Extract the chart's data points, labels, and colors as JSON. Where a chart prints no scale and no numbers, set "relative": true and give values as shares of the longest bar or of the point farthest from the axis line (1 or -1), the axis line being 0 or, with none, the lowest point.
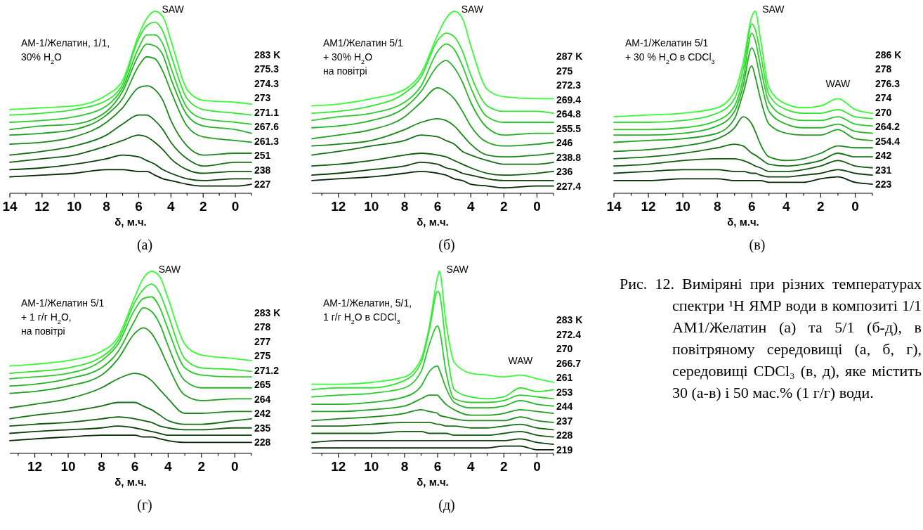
{
  "chart_data": [
    {
      "type": "line",
      "relative": true,
      "title": "(а)",
      "xlabel": "δ, м.ч.",
      "xlim": [
        14,
        -1
      ],
      "xticks": [
        14,
        {
          "value": 13,
          "label": null
        },
        12,
        {
          "value": 11,
          "label": null
        },
        10,
        {
          "value": 9,
          "label": null
        },
        8,
        {
          "value": 7,
          "label": null
        },
        6,
        {
          "value": 5,
          "label": null
        },
        4,
        {
          "value": 3,
          "label": null
        },
        2,
        {
          "value": 1,
          "label": null
        },
        0,
        {
          "value": -1,
          "label": null
        }
      ],
      "annotations": [
        "АМ-1/Желатин, 1/1,\n30% H$_{2}$O",
        "SAW"
      ],
      "x": [
        14,
        12,
        10,
        8,
        7,
        6,
        5.5,
        5,
        4.5,
        4,
        3,
        2,
        0,
        -1
      ],
      "series": [
        {
          "name": "283 K",
          "color": "#33ff33",
          "values": [
            0.46,
            0.47,
            0.48,
            0.54,
            0.62,
            0.87,
            0.96,
            1.0,
            0.97,
            0.84,
            0.57,
            0.51,
            0.5,
            0.49
          ]
        },
        {
          "name": "275.3",
          "color": "#2ee62e",
          "values": [
            0.43,
            0.44,
            0.46,
            0.51,
            0.6,
            0.85,
            0.92,
            0.94,
            0.89,
            0.76,
            0.52,
            0.46,
            0.44,
            0.43
          ]
        },
        {
          "name": "274.3",
          "color": "#29cc29",
          "values": [
            0.39,
            0.4,
            0.42,
            0.48,
            0.58,
            0.8,
            0.87,
            0.87,
            0.82,
            0.69,
            0.47,
            0.41,
            0.39,
            0.38
          ]
        },
        {
          "name": "273",
          "color": "#24b324",
          "values": [
            0.35,
            0.37,
            0.38,
            0.45,
            0.56,
            0.76,
            0.82,
            0.81,
            0.76,
            0.63,
            0.43,
            0.37,
            0.35,
            0.33
          ]
        },
        {
          "name": "271.1",
          "color": "#1f9e1f",
          "values": [
            0.32,
            0.33,
            0.35,
            0.43,
            0.52,
            0.7,
            0.75,
            0.74,
            0.67,
            0.56,
            0.37,
            0.31,
            0.29,
            0.28
          ]
        },
        {
          "name": "267.6",
          "color": "#1a871a",
          "values": [
            0.27,
            0.28,
            0.31,
            0.39,
            0.47,
            0.58,
            0.59,
            0.57,
            0.51,
            0.4,
            0.26,
            0.21,
            0.22,
            0.22
          ]
        },
        {
          "name": "261.3",
          "color": "#157015",
          "values": [
            0.21,
            0.23,
            0.26,
            0.32,
            0.38,
            0.43,
            0.43,
            0.4,
            0.35,
            0.28,
            0.19,
            0.15,
            0.17,
            0.17
          ]
        },
        {
          "name": "251",
          "color": "#105a10",
          "values": [
            0.17,
            0.19,
            0.21,
            0.26,
            0.29,
            0.32,
            0.31,
            0.28,
            0.24,
            0.19,
            0.13,
            0.11,
            0.12,
            0.12
          ]
        },
        {
          "name": "238",
          "color": "#0b420b",
          "values": [
            0.13,
            0.14,
            0.16,
            0.19,
            0.21,
            0.2,
            0.18,
            0.16,
            0.13,
            0.11,
            0.08,
            0.07,
            0.08,
            0.08
          ]
        },
        {
          "name": "227",
          "color": "#062806",
          "values": [
            0.09,
            0.1,
            0.11,
            0.13,
            0.13,
            0.12,
            0.12,
            0.1,
            0.08,
            0.07,
            0.05,
            0.04,
            0.04,
            0.05
          ]
        }
      ]
    },
    {
      "type": "line",
      "relative": true,
      "title": "(б)",
      "xlabel": "δ, м.ч.",
      "xlim": [
        13.6,
        -1
      ],
      "xticks": [
        {
          "value": 13,
          "label": null
        },
        12,
        {
          "value": 11,
          "label": null
        },
        10,
        {
          "value": 9,
          "label": null
        },
        8,
        {
          "value": 7,
          "label": null
        },
        6,
        {
          "value": 5,
          "label": null
        },
        4,
        {
          "value": 3,
          "label": null
        },
        2,
        {
          "value": 1,
          "label": null
        },
        0,
        {
          "value": -1,
          "label": null
        }
      ],
      "annotations": [
        "АМ1/Желатин 5/1\n+ 30% H$_{2}$O\nна повітрі",
        "SAW"
      ],
      "x": [
        13.6,
        12,
        10,
        8,
        7,
        6,
        5.5,
        5,
        4.5,
        4,
        3,
        2,
        0,
        -1
      ],
      "series": [
        {
          "name": "287 K",
          "color": "#33ff33",
          "values": [
            0.48,
            0.49,
            0.52,
            0.57,
            0.66,
            0.87,
            0.96,
            1.0,
            0.96,
            0.81,
            0.57,
            0.53,
            0.52,
            0.52
          ]
        },
        {
          "name": "275",
          "color": "#2ee62e",
          "values": [
            0.44,
            0.45,
            0.48,
            0.55,
            0.64,
            0.84,
            0.88,
            0.86,
            0.78,
            0.65,
            0.48,
            0.45,
            0.45,
            0.44
          ]
        },
        {
          "name": "272.3",
          "color": "#29cc29",
          "values": [
            0.4,
            0.42,
            0.44,
            0.5,
            0.59,
            0.78,
            0.82,
            0.79,
            0.7,
            0.58,
            0.42,
            0.39,
            0.39,
            0.39
          ]
        },
        {
          "name": "269.4",
          "color": "#24b324",
          "values": [
            0.36,
            0.37,
            0.4,
            0.47,
            0.56,
            0.7,
            0.73,
            0.69,
            0.61,
            0.5,
            0.36,
            0.32,
            0.33,
            0.33
          ]
        },
        {
          "name": "264.8",
          "color": "#1f9e1f",
          "values": [
            0.3,
            0.32,
            0.35,
            0.42,
            0.5,
            0.58,
            0.56,
            0.52,
            0.45,
            0.37,
            0.28,
            0.26,
            0.27,
            0.28
          ]
        },
        {
          "name": "255.5",
          "color": "#1a871a",
          "values": [
            0.26,
            0.27,
            0.29,
            0.35,
            0.39,
            0.41,
            0.4,
            0.37,
            0.32,
            0.27,
            0.21,
            0.2,
            0.21,
            0.22
          ]
        },
        {
          "name": "246",
          "color": "#157015",
          "values": [
            0.21,
            0.23,
            0.26,
            0.29,
            0.32,
            0.31,
            0.29,
            0.27,
            0.23,
            0.21,
            0.18,
            0.16,
            0.16,
            0.17
          ]
        },
        {
          "name": "238.8",
          "color": "#105a10",
          "values": [
            0.15,
            0.16,
            0.18,
            0.21,
            0.22,
            0.21,
            0.2,
            0.18,
            0.16,
            0.14,
            0.11,
            0.1,
            0.11,
            0.12
          ]
        },
        {
          "name": "236",
          "color": "#0b420b",
          "values": [
            0.1,
            0.11,
            0.13,
            0.15,
            0.17,
            0.16,
            0.14,
            0.13,
            0.11,
            0.1,
            0.08,
            0.07,
            0.07,
            0.07
          ]
        },
        {
          "name": "227.4",
          "color": "#062806",
          "values": [
            0.07,
            0.08,
            0.09,
            0.11,
            0.12,
            0.11,
            0.1,
            0.08,
            0.07,
            0.05,
            0.04,
            0.03,
            0.04,
            0.04
          ]
        }
      ]
    },
    {
      "type": "line",
      "relative": true,
      "title": "(в)",
      "xlabel": "δ, м.ч.",
      "xlim": [
        14,
        -1
      ],
      "xticks": [
        14,
        {
          "value": 13,
          "label": null
        },
        12,
        {
          "value": 11,
          "label": null
        },
        10,
        {
          "value": 9,
          "label": null
        },
        8,
        {
          "value": 7,
          "label": null
        },
        6,
        {
          "value": 5,
          "label": null
        },
        4,
        {
          "value": 3,
          "label": null
        },
        2,
        {
          "value": 1,
          "label": null
        },
        0,
        {
          "value": -1,
          "label": null
        }
      ],
      "annotations": [
        "АМ-1/Желатин 5/1\n+ 30 % H$_{2}$O в CDCl$_{3}$",
        "SAW",
        "WAW"
      ],
      "x": [
        14,
        12,
        10,
        8,
        7,
        6.5,
        6,
        5.8,
        5.5,
        5,
        4,
        3,
        2,
        1,
        0,
        -1
      ],
      "series": [
        {
          "name": "286 K",
          "color": "#33ff33",
          "values": [
            0.42,
            0.43,
            0.44,
            0.47,
            0.56,
            0.72,
            0.97,
            1.0,
            0.85,
            0.58,
            0.49,
            0.47,
            0.48,
            0.52,
            0.46,
            0.44
          ]
        },
        {
          "name": "278",
          "color": "#2ee62e",
          "values": [
            0.39,
            0.39,
            0.4,
            0.44,
            0.52,
            0.68,
            0.93,
            0.9,
            0.77,
            0.54,
            0.46,
            0.44,
            0.44,
            0.46,
            0.42,
            0.41
          ]
        },
        {
          "name": "276.3",
          "color": "#29cc29",
          "values": [
            0.35,
            0.35,
            0.36,
            0.4,
            0.48,
            0.63,
            0.88,
            0.84,
            0.7,
            0.5,
            0.42,
            0.4,
            0.4,
            0.42,
            0.38,
            0.37
          ]
        },
        {
          "name": "274",
          "color": "#24b324",
          "values": [
            0.32,
            0.32,
            0.33,
            0.37,
            0.45,
            0.59,
            0.8,
            0.76,
            0.63,
            0.45,
            0.38,
            0.36,
            0.36,
            0.38,
            0.34,
            0.33
          ]
        },
        {
          "name": "270",
          "color": "#1f9e1f",
          "values": [
            0.28,
            0.29,
            0.3,
            0.33,
            0.41,
            0.55,
            0.7,
            0.64,
            0.52,
            0.38,
            0.33,
            0.32,
            0.32,
            0.35,
            0.3,
            0.29
          ]
        },
        {
          "name": "264.2",
          "color": "#1a871a",
          "values": [
            0.23,
            0.24,
            0.26,
            0.3,
            0.36,
            0.42,
            0.38,
            0.34,
            0.27,
            0.2,
            0.18,
            0.19,
            0.22,
            0.26,
            0.25,
            0.25
          ]
        },
        {
          "name": "254.4",
          "color": "#157015",
          "values": [
            0.19,
            0.2,
            0.22,
            0.25,
            0.27,
            0.26,
            0.22,
            0.21,
            0.19,
            0.16,
            0.15,
            0.16,
            0.18,
            0.22,
            0.2,
            0.2
          ]
        },
        {
          "name": "242",
          "color": "#105a10",
          "values": [
            0.15,
            0.16,
            0.18,
            0.19,
            0.19,
            0.18,
            0.16,
            0.15,
            0.14,
            0.12,
            0.12,
            0.13,
            0.15,
            0.18,
            0.15,
            0.14
          ]
        },
        {
          "name": "231",
          "color": "#0b420b",
          "values": [
            0.11,
            0.12,
            0.13,
            0.13,
            0.12,
            0.12,
            0.11,
            0.11,
            0.1,
            0.09,
            0.09,
            0.1,
            0.11,
            0.13,
            0.11,
            0.1
          ]
        },
        {
          "name": "223",
          "color": "#062806",
          "values": [
            0.07,
            0.07,
            0.08,
            0.08,
            0.07,
            0.07,
            0.07,
            0.07,
            0.07,
            0.06,
            0.06,
            0.06,
            0.08,
            0.09,
            0.06,
            0.05
          ]
        }
      ]
    },
    {
      "type": "line",
      "relative": true,
      "title": "(г)",
      "xlabel": "δ, м.ч.",
      "xlim": [
        13.5,
        -1
      ],
      "xticks": [
        {
          "value": 13,
          "label": null
        },
        12,
        {
          "value": 11,
          "label": null
        },
        10,
        {
          "value": 9,
          "label": null
        },
        8,
        {
          "value": 7,
          "label": null
        },
        6,
        {
          "value": 5,
          "label": null
        },
        4,
        {
          "value": 3,
          "label": null
        },
        2,
        {
          "value": 1,
          "label": null
        },
        0,
        {
          "value": -1,
          "label": null
        }
      ],
      "annotations": [
        "АМ-1/Желатин 5/1\n+ 1 г/г H$_{2}$O,\nна повітрі",
        "SAW"
      ],
      "x": [
        13.5,
        12,
        10,
        8,
        7,
        6,
        5.5,
        5,
        4.5,
        4,
        3,
        2,
        0,
        -1
      ],
      "series": [
        {
          "name": "283 K",
          "color": "#33ff33",
          "values": [
            0.48,
            0.49,
            0.51,
            0.56,
            0.64,
            0.86,
            0.96,
            1.0,
            0.97,
            0.85,
            0.6,
            0.54,
            0.52,
            0.51
          ]
        },
        {
          "name": "278",
          "color": "#2ee62e",
          "values": [
            0.44,
            0.45,
            0.47,
            0.53,
            0.62,
            0.83,
            0.9,
            0.93,
            0.88,
            0.76,
            0.52,
            0.47,
            0.46,
            0.45
          ]
        },
        {
          "name": "277",
          "color": "#29cc29",
          "values": [
            0.41,
            0.42,
            0.44,
            0.51,
            0.6,
            0.79,
            0.85,
            0.86,
            0.8,
            0.68,
            0.47,
            0.43,
            0.42,
            0.42
          ]
        },
        {
          "name": "275",
          "color": "#24b324",
          "values": [
            0.37,
            0.38,
            0.41,
            0.47,
            0.56,
            0.73,
            0.8,
            0.78,
            0.71,
            0.59,
            0.4,
            0.36,
            0.36,
            0.36
          ]
        },
        {
          "name": "271.2",
          "color": "#1f9e1f",
          "values": [
            0.33,
            0.34,
            0.37,
            0.43,
            0.52,
            0.66,
            0.69,
            0.66,
            0.58,
            0.48,
            0.32,
            0.29,
            0.3,
            0.3
          ]
        },
        {
          "name": "265",
          "color": "#1a871a",
          "values": [
            0.25,
            0.27,
            0.3,
            0.36,
            0.41,
            0.44,
            0.43,
            0.4,
            0.35,
            0.3,
            0.22,
            0.22,
            0.23,
            0.23
          ]
        },
        {
          "name": "264",
          "color": "#157015",
          "values": [
            0.19,
            0.21,
            0.23,
            0.26,
            0.28,
            0.28,
            0.26,
            0.24,
            0.21,
            0.18,
            0.16,
            0.16,
            0.18,
            0.19
          ]
        },
        {
          "name": "242",
          "color": "#105a10",
          "values": [
            0.15,
            0.16,
            0.17,
            0.19,
            0.2,
            0.19,
            0.18,
            0.17,
            0.15,
            0.14,
            0.13,
            0.13,
            0.14,
            0.14
          ]
        },
        {
          "name": "235",
          "color": "#0b420b",
          "values": [
            0.11,
            0.12,
            0.13,
            0.14,
            0.15,
            0.14,
            0.13,
            0.12,
            0.11,
            0.1,
            0.1,
            0.1,
            0.1,
            0.1
          ]
        },
        {
          "name": "228",
          "color": "#062806",
          "values": [
            0.07,
            0.08,
            0.09,
            0.1,
            0.1,
            0.1,
            0.09,
            0.09,
            0.08,
            0.07,
            0.06,
            0.06,
            0.06,
            0.06
          ]
        }
      ]
    },
    {
      "type": "line",
      "relative": true,
      "title": "(д)",
      "xlabel": "δ, м.ч.",
      "xlim": [
        13.6,
        -1
      ],
      "xticks": [
        {
          "value": 13,
          "label": null
        },
        12,
        {
          "value": 11,
          "label": null
        },
        10,
        {
          "value": 9,
          "label": null
        },
        8,
        {
          "value": 7,
          "label": null
        },
        6,
        {
          "value": 5,
          "label": null
        },
        4,
        {
          "value": 3,
          "label": null
        },
        2,
        {
          "value": 1,
          "label": null
        },
        0,
        {
          "value": -1,
          "label": null
        }
      ],
      "annotations": [
        "АМ-1/Желатин, 5/1,\n1 г/г H$_{2}$O в CDCl$_{3}$",
        "SAW",
        "WAW"
      ],
      "x": [
        13.6,
        12,
        10,
        8,
        7,
        6.5,
        6,
        5.9,
        5.5,
        5,
        4,
        3,
        2,
        1,
        0,
        -1
      ],
      "series": [
        {
          "name": "283 K",
          "color": "#33ff33",
          "values": [
            0.38,
            0.38,
            0.39,
            0.42,
            0.52,
            0.7,
            0.97,
            1.0,
            0.72,
            0.5,
            0.44,
            0.43,
            0.42,
            0.43,
            0.41,
            0.39
          ]
        },
        {
          "name": "272.4",
          "color": "#2ee62e",
          "values": [
            0.35,
            0.36,
            0.36,
            0.4,
            0.5,
            0.68,
            0.89,
            0.88,
            0.6,
            0.35,
            0.31,
            0.3,
            0.31,
            0.36,
            0.34,
            0.35
          ]
        },
        {
          "name": "270",
          "color": "#29cc29",
          "values": [
            0.31,
            0.32,
            0.33,
            0.36,
            0.45,
            0.6,
            0.7,
            0.68,
            0.45,
            0.3,
            0.28,
            0.28,
            0.29,
            0.32,
            0.31,
            0.3
          ]
        },
        {
          "name": "266.7",
          "color": "#24b324",
          "values": [
            0.27,
            0.27,
            0.28,
            0.31,
            0.37,
            0.45,
            0.48,
            0.46,
            0.36,
            0.28,
            0.25,
            0.25,
            0.26,
            0.29,
            0.27,
            0.26
          ]
        },
        {
          "name": "261",
          "color": "#1f9e1f",
          "values": [
            0.23,
            0.23,
            0.24,
            0.26,
            0.3,
            0.32,
            0.32,
            0.31,
            0.27,
            0.24,
            0.21,
            0.21,
            0.22,
            0.24,
            0.23,
            0.22
          ]
        },
        {
          "name": "253",
          "color": "#1a871a",
          "values": [
            0.18,
            0.19,
            0.2,
            0.22,
            0.24,
            0.23,
            0.22,
            0.21,
            0.2,
            0.19,
            0.18,
            0.18,
            0.18,
            0.2,
            0.18,
            0.17
          ]
        },
        {
          "name": "244",
          "color": "#157015",
          "values": [
            0.15,
            0.15,
            0.16,
            0.17,
            0.17,
            0.17,
            0.16,
            0.16,
            0.15,
            0.15,
            0.14,
            0.14,
            0.15,
            0.16,
            0.14,
            0.13
          ]
        },
        {
          "name": "237",
          "color": "#105a10",
          "values": [
            0.11,
            0.11,
            0.11,
            0.12,
            0.12,
            0.11,
            0.11,
            0.11,
            0.11,
            0.1,
            0.1,
            0.1,
            0.11,
            0.12,
            0.1,
            0.09
          ]
        },
        {
          "name": "228",
          "color": "#0b420b",
          "values": [
            0.06,
            0.07,
            0.07,
            0.07,
            0.07,
            0.07,
            0.07,
            0.07,
            0.07,
            0.07,
            0.07,
            0.07,
            0.07,
            0.08,
            0.06,
            0.05
          ]
        },
        {
          "name": "219",
          "color": "#062806",
          "values": [
            0.03,
            0.03,
            0.03,
            0.03,
            0.03,
            0.03,
            0.03,
            0.03,
            0.03,
            0.03,
            0.03,
            0.03,
            0.04,
            0.04,
            0.02,
            0.02
          ]
        }
      ]
    },
    {
      "type": "other",
      "annotations": [
        "Рис. 12. Виміряні при різних температурах спектри ¹H ЯМР води в композиті 1/1 АМ1/Желатин (а) та 5/1 (б-д), в повітряному середовищі (а, б, г), середовищі CDCl₃ (в, д), яке містить 30 (а-в) і 50 мас.% (1 г/г) води."
      ]
    }
  ]
}
